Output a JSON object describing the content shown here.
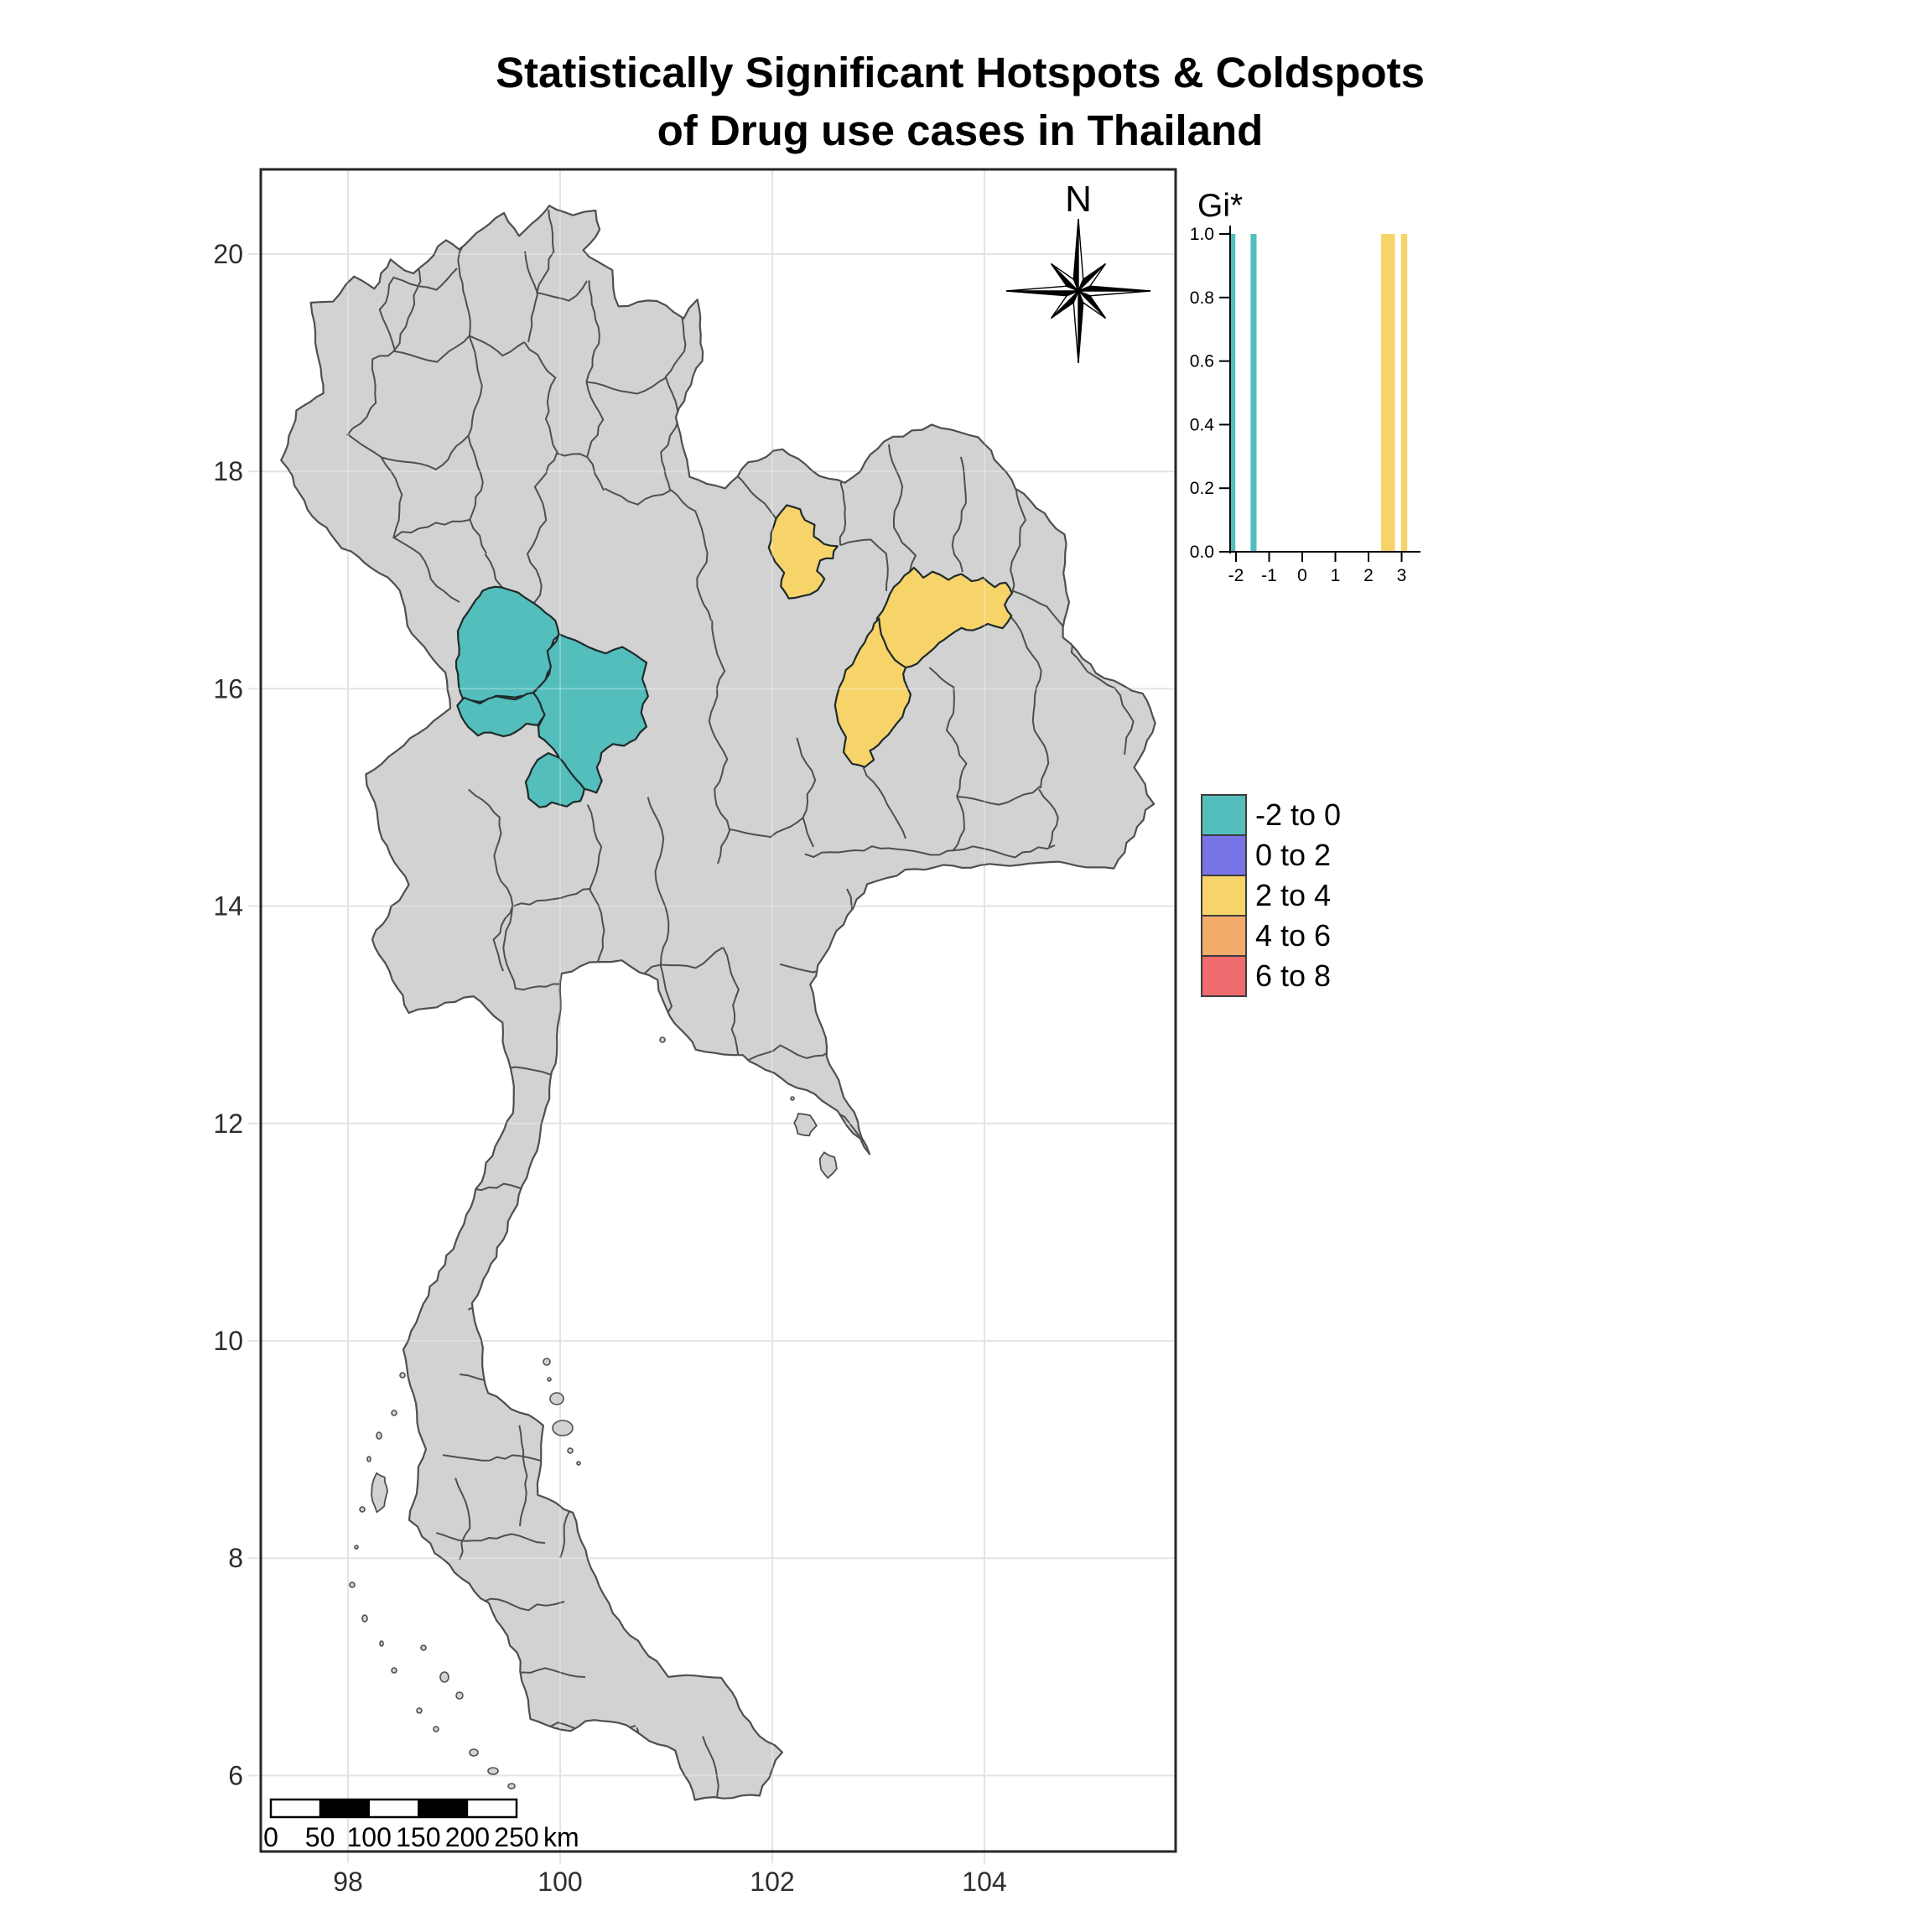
{
  "title": {
    "line1": "Statistically Significant Hotspots & Coldspots",
    "line2": "of Drug use cases in Thailand"
  },
  "map": {
    "x_tick_labels": [
      "98",
      "100",
      "102",
      "104"
    ],
    "x_tick_lons": [
      98,
      100,
      102,
      104
    ],
    "y_tick_labels": [
      "6",
      "8",
      "10",
      "12",
      "14",
      "16",
      "18",
      "20"
    ],
    "y_tick_lats": [
      6,
      8,
      10,
      12,
      14,
      16,
      18,
      20
    ],
    "compass_label": "N",
    "colors": {
      "land": "#d2d2d2",
      "land_border": "#4f4f4f",
      "coldspot": "#53bebc",
      "hotspot": "#f6d46a",
      "highlight_border": "#1f2a2a",
      "grid": "#e4e4e4",
      "panel_border": "#262626",
      "sea": "#ffffff"
    }
  },
  "scalebar": {
    "tick_labels": [
      "0",
      "50",
      "100",
      "150",
      "200",
      "250"
    ],
    "unit_label": "km"
  },
  "legend": {
    "entries": [
      {
        "label": "-2 to 0",
        "color": "#53bebc"
      },
      {
        "label": "0 to 2",
        "color": "#7873e6"
      },
      {
        "label": "2 to 4",
        "color": "#f6d46a"
      },
      {
        "label": "4 to 6",
        "color": "#f3ac6c"
      },
      {
        "label": "6 to 8",
        "color": "#ef6b6d"
      }
    ]
  },
  "chart_data": {
    "type": "bar",
    "title": "Gi*",
    "xlabel": "",
    "ylabel": "",
    "x_ticks": [
      -2,
      -1,
      0,
      1,
      2,
      3
    ],
    "y_ticks": [
      "0.0",
      "0.2",
      "0.4",
      "0.6",
      "0.8",
      "1.0"
    ],
    "xlim": [
      -2.35,
      3.4
    ],
    "ylim": [
      0,
      1
    ],
    "grid": false,
    "legend_position": "right",
    "bars": [
      {
        "x0": -2.2,
        "x1": -2.02,
        "height": 1.0,
        "color": "#53bebc"
      },
      {
        "x0": -1.56,
        "x1": -1.38,
        "height": 1.0,
        "color": "#53bebc"
      },
      {
        "x0": 2.38,
        "x1": 2.8,
        "height": 1.0,
        "color": "#f6d46a"
      },
      {
        "x0": 2.98,
        "x1": 3.17,
        "height": 1.0,
        "color": "#f6d46a"
      }
    ]
  }
}
